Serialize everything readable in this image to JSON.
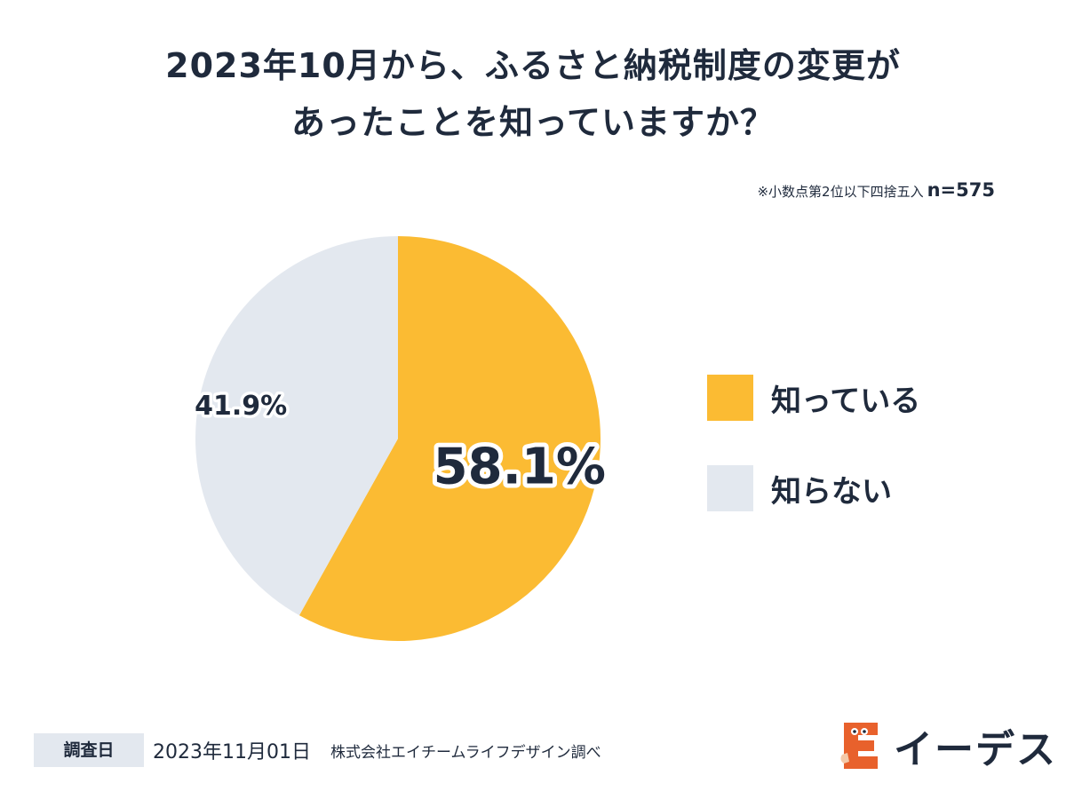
{
  "title": {
    "line1": "2023年10月から、ふるさと納税制度の変更が",
    "line2": "あったことを知っていますか？"
  },
  "note": {
    "rounding": "※小数点第2位以下四捨五入",
    "sample": "n=575"
  },
  "chart_data": {
    "type": "pie",
    "slices": [
      {
        "label": "知っている",
        "value": 58.1,
        "display": "58.1%",
        "color": "#fbbb33"
      },
      {
        "label": "知らない",
        "value": 41.9,
        "display": "41.9%",
        "color": "#e3e8ef"
      }
    ],
    "start": "12 o'clock",
    "direction": "clockwise",
    "legend_position": "right"
  },
  "footer": {
    "date_label": "調査日",
    "date_value": "2023年11月01日",
    "credit": "株式会社エイチームライフデザイン調べ"
  },
  "brand": {
    "name": "イーデス",
    "logo_color": "#e8612c",
    "logo_icon": "mascot-logo-icon"
  }
}
